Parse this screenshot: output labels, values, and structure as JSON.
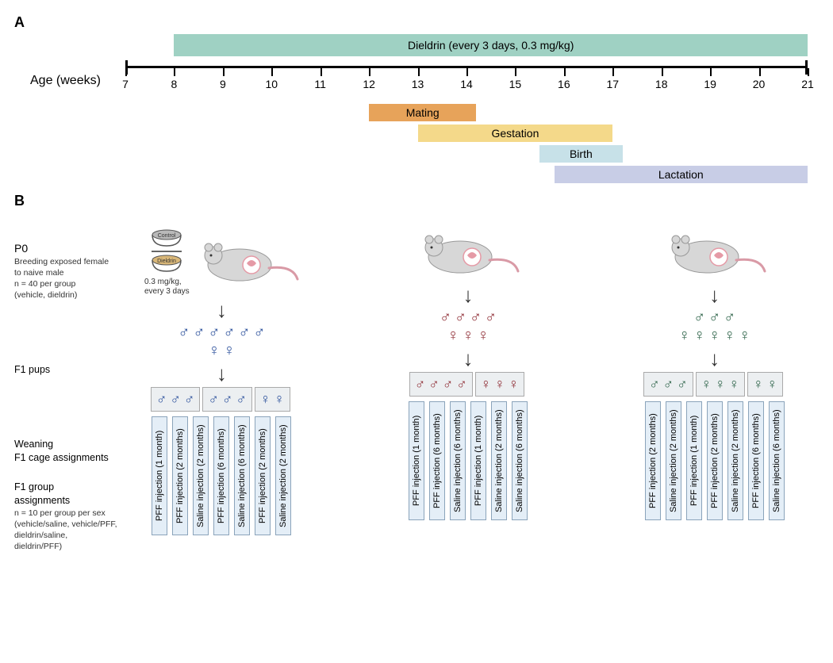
{
  "panelA": {
    "label": "A",
    "dieldrinBar": {
      "text": "Dieldrin (every 3 days, 0.3 mg/kg)",
      "color": "#9fd1c3",
      "start": 8,
      "end": 21
    },
    "axis": {
      "label": "Age (weeks)",
      "min": 7,
      "max": 21,
      "ticks": [
        7,
        8,
        9,
        10,
        11,
        12,
        13,
        14,
        15,
        16,
        17,
        18,
        19,
        20,
        21
      ]
    },
    "phases": [
      {
        "text": "Mating",
        "color": "#e7a35a",
        "start": 12,
        "end": 14.2,
        "row": 0
      },
      {
        "text": "Gestation",
        "color": "#f4d98a",
        "start": 13,
        "end": 17,
        "row": 1
      },
      {
        "text": "Birth",
        "color": "#c7e1e8",
        "start": 15.5,
        "end": 17.2,
        "row": 2
      },
      {
        "text": "Lactation",
        "color": "#c8cde6",
        "start": 15.8,
        "end": 21,
        "row": 3
      }
    ]
  },
  "panelB": {
    "label": "B",
    "labels": {
      "p0_title": "P0",
      "p0_sub": "Breeding exposed female to naive male\nn = 40 per group\n(vehicle, dieldrin)",
      "f1_pups": "F1 pups",
      "weaning": "Weaning\nF1 cage assignments",
      "assignments": "F1 group\nassignments",
      "assignments_sub": "n = 10 per group per sex\n(vehicle/saline, vehicle/PFF,\ndieldrin/saline,\ndieldrin/PFF)",
      "bowl_control": "Control",
      "bowl_dieldrin": "Dieldrin",
      "dose": "0.3 mg/kg,\nevery 3 days"
    },
    "colors": {
      "blue": "#2a4f9b",
      "red": "#8e2b33",
      "green": "#2b6247",
      "arrow": "#333333"
    },
    "bowl_colors": {
      "control": "#b9b9b9",
      "dieldrin": "#d9b778"
    },
    "assignments_text": {
      "pff1": "PFF injection (1 month)",
      "pff2": "PFF injection (2 months)",
      "pff6": "PFF injection (6 months)",
      "sal2": "Saline injection (2 months)",
      "sal6": "Saline injection (6 months)"
    },
    "litters": [
      {
        "color": "blue",
        "males": 6,
        "females": 2,
        "cages": [
          {
            "sex": "m",
            "n": 3
          },
          {
            "sex": "m",
            "n": 3
          },
          {
            "sex": "f",
            "n": 2
          }
        ],
        "assignments": [
          "pff1",
          "pff2",
          "sal2",
          "pff6",
          "sal6",
          "pff2",
          "sal2"
        ]
      },
      {
        "color": "red",
        "males": 4,
        "females": 3,
        "cages": [
          {
            "sex": "m",
            "n": 4
          },
          {
            "sex": "f",
            "n": 3
          }
        ],
        "assignments": [
          "pff1",
          "pff6",
          "sal6",
          "pff1",
          "sal2",
          "sal6"
        ]
      },
      {
        "color": "green",
        "males": 3,
        "females": 5,
        "cages": [
          {
            "sex": "m",
            "n": 3
          },
          {
            "sex": "f",
            "n": 3
          },
          {
            "sex": "f",
            "n": 2
          }
        ],
        "assignments": [
          "pff2",
          "sal2",
          "pff1",
          "pff2",
          "sal2",
          "pff6",
          "sal6"
        ]
      }
    ]
  }
}
